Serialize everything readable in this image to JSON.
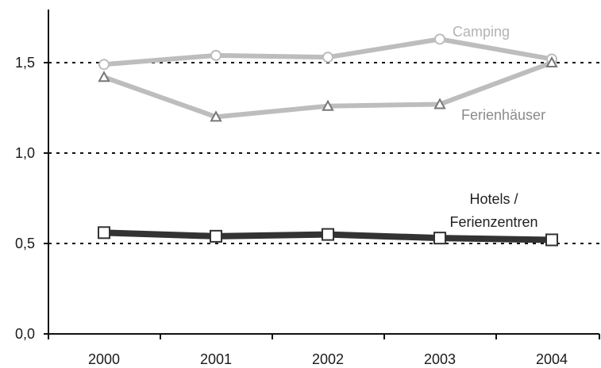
{
  "chart_data": {
    "type": "line",
    "x": [
      "2000",
      "2001",
      "2002",
      "2003",
      "2004"
    ],
    "ylim": [
      0,
      1.8
    ],
    "yticks": [
      "0,0",
      "0,5",
      "1,0",
      "1,5"
    ],
    "grid": "dotted horizontal lines at 0,5 / 1,0 / 1,5",
    "series": [
      {
        "name": "Camping",
        "values": [
          1.49,
          1.54,
          1.53,
          1.63,
          1.52
        ],
        "color": "#bdbdbd",
        "marker": "circle"
      },
      {
        "name": "Ferienhäuser",
        "values": [
          1.42,
          1.2,
          1.26,
          1.27,
          1.5
        ],
        "color": "#bdbdbd",
        "marker": "triangle"
      },
      {
        "name_lines": [
          "Hotels /",
          "Ferienzentren"
        ],
        "values": [
          0.56,
          0.54,
          0.55,
          0.53,
          0.52
        ],
        "color": "#333333",
        "marker": "square"
      }
    ]
  }
}
